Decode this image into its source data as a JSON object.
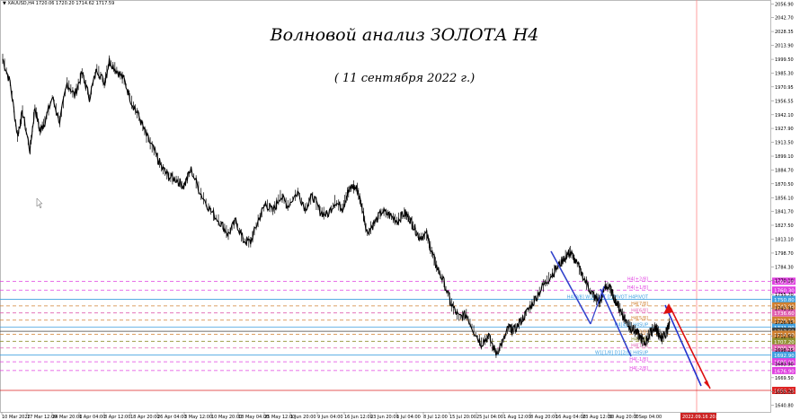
{
  "header": {
    "symbol": "XAUUSD,H4",
    "ohlc": "1720.06 1720.20 1714.62 1717.59"
  },
  "title": "Волновой анализ ЗОЛОТА H4",
  "subtitle": "( 11 сентября 2022 г.)",
  "colors": {
    "price": "#000000",
    "impulse_line": "#3344cc",
    "forecast_up": "#dd1111",
    "forecast_down": "#2233cc",
    "level_magenta": "#e040e0",
    "level_orange": "#d08030",
    "level_blue": "#40a0e0",
    "level_olive": "#909030",
    "level_pink": "#e060b0",
    "current_marker": "#cc2222"
  },
  "chart_data": {
    "type": "candlestick",
    "y_ticks": [
      "2056.90",
      "2042.70",
      "2028.35",
      "2013.90",
      "1999.50",
      "1985.30",
      "1970.95",
      "1956.55",
      "1942.10",
      "1927.90",
      "1913.50",
      "1899.10",
      "1884.70",
      "1870.50",
      "1856.10",
      "1841.70",
      "1827.50",
      "1813.10",
      "1798.70",
      "1784.30",
      "1770.10",
      "1755.70",
      "1741.35",
      "1726.95",
      "1712.60",
      "1698.25",
      "1683.90",
      "1669.50",
      "1655.00",
      "1640.80"
    ],
    "ylim": [
      1634,
      2061
    ],
    "x_ticks": [
      "10 Mar 2022",
      "17 Mar 12:00",
      "24 Mar 20:00",
      "1 Apr 04:00",
      "8 Apr 12:00",
      "18 Apr 20:00",
      "26 Apr 04:00",
      "3 May 12:00",
      "10 May 20:00",
      "18 May 04:00",
      "25 May 12:00",
      "1 Jun 20:00",
      "9 Jun 04:00",
      "16 Jun 12:00",
      "23 Jun 20:00",
      "1 Jul 04:00",
      "8 Jul 12:00",
      "15 Jul 20:00",
      "25 Jul 04:00",
      "1 Aug 12:00",
      "8 Aug 20:00",
      "16 Aug 04:00",
      "23 Aug 12:00",
      "30 Aug 20:00",
      "7 Sep 04:00"
    ],
    "current_date_label": "2022.09.16 20:00",
    "price_path": [
      [
        0,
        2000
      ],
      [
        0.03,
        1975
      ],
      [
        0.06,
        1920
      ],
      [
        0.08,
        1945
      ],
      [
        0.11,
        1905
      ],
      [
        0.13,
        1950
      ],
      [
        0.15,
        1925
      ],
      [
        0.17,
        1935
      ],
      [
        0.2,
        1960
      ],
      [
        0.23,
        1935
      ],
      [
        0.26,
        1975
      ],
      [
        0.29,
        1962
      ],
      [
        0.32,
        1985
      ],
      [
        0.35,
        1960
      ],
      [
        0.38,
        1990
      ],
      [
        0.41,
        1975
      ],
      [
        0.43,
        1998
      ],
      [
        0.46,
        1988
      ],
      [
        0.49,
        1978
      ],
      [
        0.52,
        1955
      ],
      [
        0.55,
        1940
      ],
      [
        0.58,
        1920
      ],
      [
        0.61,
        1905
      ],
      [
        0.64,
        1888
      ],
      [
        0.67,
        1878
      ],
      [
        0.7,
        1875
      ],
      [
        0.73,
        1868
      ],
      [
        0.76,
        1885
      ],
      [
        0.8,
        1860
      ],
      [
        0.84,
        1842
      ],
      [
        0.88,
        1830
      ],
      [
        0.91,
        1818
      ],
      [
        0.94,
        1832
      ],
      [
        0.97,
        1812
      ],
      [
        1.0,
        1810
      ],
      [
        1.03,
        1832
      ],
      [
        1.06,
        1850
      ],
      [
        1.09,
        1842
      ],
      [
        1.12,
        1858
      ],
      [
        1.15,
        1848
      ],
      [
        1.19,
        1862
      ],
      [
        1.22,
        1845
      ],
      [
        1.25,
        1858
      ],
      [
        1.28,
        1842
      ],
      [
        1.31,
        1838
      ],
      [
        1.34,
        1852
      ],
      [
        1.37,
        1845
      ],
      [
        1.39,
        1860
      ],
      [
        1.41,
        1868
      ],
      [
        1.43,
        1865
      ],
      [
        1.45,
        1845
      ],
      [
        1.47,
        1820
      ],
      [
        1.5,
        1830
      ],
      [
        1.53,
        1842
      ],
      [
        1.56,
        1838
      ],
      [
        1.59,
        1832
      ],
      [
        1.62,
        1840
      ],
      [
        1.64,
        1835
      ],
      [
        1.66,
        1825
      ],
      [
        1.68,
        1815
      ],
      [
        1.71,
        1818
      ],
      [
        1.73,
        1800
      ],
      [
        1.75,
        1785
      ],
      [
        1.78,
        1768
      ],
      [
        1.81,
        1745
      ],
      [
        1.84,
        1732
      ],
      [
        1.87,
        1735
      ],
      [
        1.9,
        1718
      ],
      [
        1.93,
        1705
      ],
      [
        1.96,
        1712
      ],
      [
        1.99,
        1695
      ],
      [
        2.02,
        1708
      ],
      [
        2.04,
        1722
      ],
      [
        2.06,
        1718
      ],
      [
        2.09,
        1728
      ],
      [
        2.12,
        1740
      ],
      [
        2.15,
        1752
      ],
      [
        2.18,
        1765
      ],
      [
        2.21,
        1775
      ],
      [
        2.24,
        1785
      ],
      [
        2.27,
        1795
      ],
      [
        2.29,
        1800
      ],
      [
        2.31,
        1790
      ],
      [
        2.34,
        1775
      ],
      [
        2.37,
        1760
      ],
      [
        2.39,
        1752
      ],
      [
        2.41,
        1748
      ],
      [
        2.43,
        1765
      ],
      [
        2.45,
        1762
      ],
      [
        2.47,
        1750
      ],
      [
        2.49,
        1740
      ],
      [
        2.51,
        1730
      ],
      [
        2.53,
        1722
      ],
      [
        2.55,
        1718
      ],
      [
        2.57,
        1712
      ],
      [
        2.59,
        1705
      ],
      [
        2.61,
        1715
      ],
      [
        2.63,
        1722
      ],
      [
        2.64,
        1718
      ],
      [
        2.66,
        1710
      ],
      [
        2.68,
        1718
      ],
      [
        2.69,
        1728
      ]
    ],
    "levels": [
      {
        "price": 1769.5,
        "label": "1769.50",
        "tag": "H4[+2/8]",
        "color": "#e040e0",
        "style": "dash"
      },
      {
        "price": 1760.3,
        "label": "1760.30",
        "tag": "H4[+1/8]",
        "color": "#e040e0",
        "style": "dash"
      },
      {
        "price": 1750.8,
        "label": "1750.80",
        "tag": "H4[8/8] W1PIVOT D1PIVOT H4PIVOT",
        "color": "#40a0e0",
        "style": "solid"
      },
      {
        "price": 1743.9,
        "label": "1743.90",
        "tag": "H4[7/8]",
        "color": "#d08030",
        "style": "dash"
      },
      {
        "price": 1736.6,
        "label": "1736.60",
        "tag": "H4[6/8]",
        "color": "#e060b0",
        "style": "dash"
      },
      {
        "price": 1729.1,
        "label": "1729.10",
        "tag": "H4[5/8]",
        "color": "#d08030",
        "style": "dash"
      },
      {
        "price": 1721.9,
        "label": "1721.90",
        "tag": "H4[4/8] H4SUP",
        "color": "#40a0e0",
        "style": "solid"
      },
      {
        "price": 1717.6,
        "label": "1717.59",
        "tag": "",
        "color": "#404040",
        "style": "solid"
      },
      {
        "price": 1714.5,
        "label": "1714.50",
        "tag": "H4[3/8]",
        "color": "#d08030",
        "style": "dash"
      },
      {
        "price": 1707.2,
        "label": "1707.20",
        "tag": "H4[2/8]",
        "color": "#909030",
        "style": "dash"
      },
      {
        "price": 1700.3,
        "label": "1700.30",
        "tag": "H4[1/8]",
        "color": "#e060b0",
        "style": "dash"
      },
      {
        "price": 1692.9,
        "label": "1692.90",
        "tag": "W1[1/8] D1[2/8] H4SUP",
        "color": "#40a0e0",
        "style": "solid"
      },
      {
        "price": 1686.0,
        "label": "1686.00",
        "tag": "H4[-1/8]",
        "color": "#e040e0",
        "style": "dash"
      },
      {
        "price": 1676.9,
        "label": "1676.90",
        "tag": "H4[-2/8]",
        "color": "#e040e0",
        "style": "dash"
      },
      {
        "price": 1656.3,
        "label": "1656.25",
        "tag": "",
        "color": "#dd2222",
        "style": "solid"
      }
    ]
  }
}
